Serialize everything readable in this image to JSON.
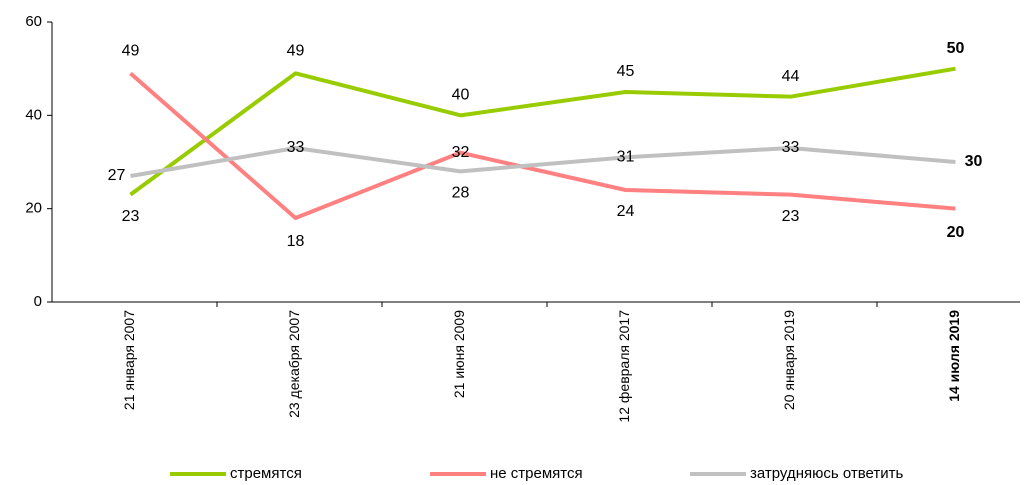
{
  "chart_data": {
    "type": "line",
    "categories": [
      "21 января 2007",
      "23 декабря 2007",
      "21 июня 2009",
      "12 февраля 2017",
      "20 января 2019",
      "14 июля 2019"
    ],
    "series": [
      {
        "name": "стремятся",
        "color": "#99cc00",
        "values": [
          23,
          49,
          40,
          45,
          44,
          50
        ]
      },
      {
        "name": "не стремятся",
        "color": "#ff8080",
        "values": [
          49,
          18,
          32,
          24,
          23,
          20
        ]
      },
      {
        "name": "затрудняюсь ответить",
        "color": "#c0c0c0",
        "values": [
          27,
          33,
          28,
          31,
          33,
          30
        ]
      }
    ],
    "ylim": [
      0,
      60
    ],
    "yticks": [
      0,
      20,
      40,
      60
    ],
    "legend": "bottom"
  }
}
